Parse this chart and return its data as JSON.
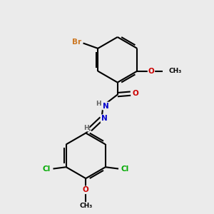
{
  "background_color": "#ebebeb",
  "bond_color": "#000000",
  "atom_colors": {
    "Br": "#cc7722",
    "O": "#cc0000",
    "N": "#0000cc",
    "Cl": "#00aa00",
    "C": "#000000",
    "H": "#606060"
  },
  "figsize": [
    3.0,
    3.0
  ],
  "dpi": 100
}
